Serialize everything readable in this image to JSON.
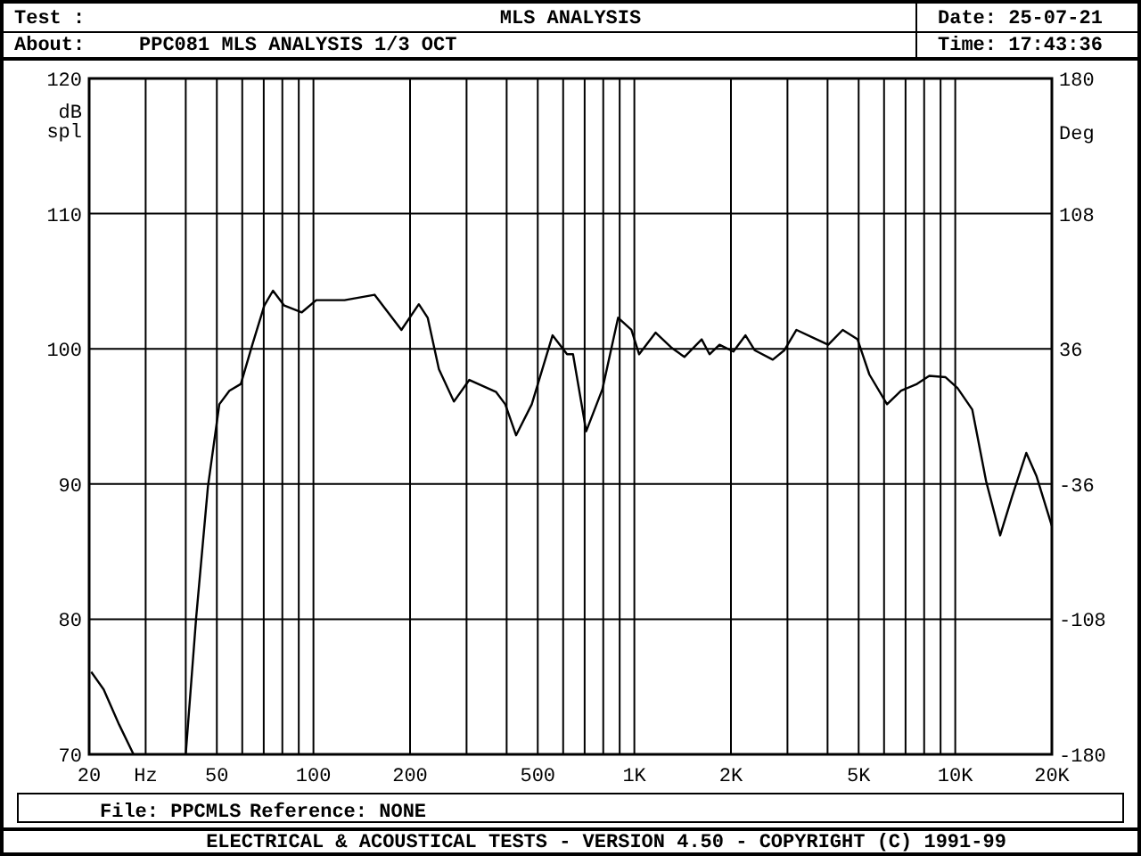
{
  "chart_data": {
    "type": "line",
    "title": "MLS ANALYSIS",
    "subtitle": "PPC081 MLS ANALYSIS 1/3 OCT",
    "annotations": [
      "Test :",
      "About:",
      "Date: 25-07-21",
      "Time: 17:43:36",
      "File: PPCMLS",
      "Reference: NONE",
      "ELECTRICAL & ACOUSTICAL TESTS - VERSION 4.50 - COPYRIGHT (C) 1991-99"
    ],
    "ylabel": "dB spl",
    "y2label": "Deg",
    "log": "x",
    "grid": true,
    "marker": "none",
    "line_style": "solid",
    "xlim": [
      20,
      20000
    ],
    "xticks": [
      20,
      {
        "value": 30,
        "label": "Hz"
      },
      {
        "value": 40,
        "label": null
      },
      50,
      {
        "value": 60,
        "label": null
      },
      {
        "value": 70,
        "label": null
      },
      {
        "value": 80,
        "label": null
      },
      {
        "value": 90,
        "label": null
      },
      100,
      200,
      {
        "value": 300,
        "label": null
      },
      {
        "value": 400,
        "label": null
      },
      500,
      {
        "value": 600,
        "label": null
      },
      {
        "value": 700,
        "label": null
      },
      {
        "value": 800,
        "label": null
      },
      {
        "value": 900,
        "label": null
      },
      {
        "value": 1000,
        "label": "1K"
      },
      {
        "value": 2000,
        "label": "2K"
      },
      {
        "value": 3000,
        "label": null
      },
      {
        "value": 4000,
        "label": null
      },
      {
        "value": 5000,
        "label": "5K"
      },
      {
        "value": 6000,
        "label": null
      },
      {
        "value": 7000,
        "label": null
      },
      {
        "value": 8000,
        "label": null
      },
      {
        "value": 9000,
        "label": null
      },
      {
        "value": 10000,
        "label": "10K"
      },
      {
        "value": 20000,
        "label": "20K"
      }
    ],
    "ylim": [
      70,
      120
    ],
    "yticks": [
      70,
      80,
      90,
      100,
      110,
      120
    ],
    "y2lim": [
      -180,
      180
    ],
    "y2ticks": [
      -180,
      -108,
      -36,
      36,
      108,
      180
    ],
    "series": [
      {
        "color": "#000000",
        "x": [
          20.3,
          22.2,
          24.8,
          27.5,
          33,
          40,
          43.1,
          46.9,
          50.9,
          54.7,
          59.4,
          64.5,
          70.3,
          74.8,
          81.1,
          92,
          102,
          125,
          155,
          188,
          213,
          227,
          246,
          274,
          306,
          371,
          396,
          428,
          479,
          556,
          617,
          644,
          708,
          795,
          890,
          979,
          1035,
          1165,
          1303,
          1432,
          1621,
          1715,
          1842,
          2035,
          2220,
          2370,
          2700,
          2935,
          3200,
          3700,
          4020,
          4460,
          4960,
          5400,
          6130,
          6780,
          7600,
          8300,
          9330,
          10160,
          11300,
          12480,
          13800,
          15050,
          16650,
          17900,
          20000
        ],
        "values": [
          76.1,
          74.8,
          72.2,
          70,
          null,
          70,
          80.1,
          89.8,
          95.9,
          96.9,
          97.4,
          100.3,
          103.2,
          104.3,
          103.2,
          102.7,
          103.6,
          103.6,
          104,
          101.4,
          103.3,
          102.3,
          98.5,
          96.1,
          97.7,
          96.8,
          95.9,
          93.6,
          95.9,
          101,
          99.6,
          99.6,
          93.9,
          97,
          102.3,
          101.4,
          99.6,
          101.2,
          100.1,
          99.4,
          100.7,
          99.6,
          100.3,
          99.8,
          101,
          99.9,
          99.2,
          99.9,
          101.4,
          100.7,
          100.3,
          101.4,
          100.7,
          98.1,
          95.9,
          96.9,
          97.4,
          98,
          97.9,
          97.1,
          95.5,
          90.2,
          86.2,
          89.1,
          92.3,
          90.6,
          86.9
        ]
      }
    ]
  }
}
